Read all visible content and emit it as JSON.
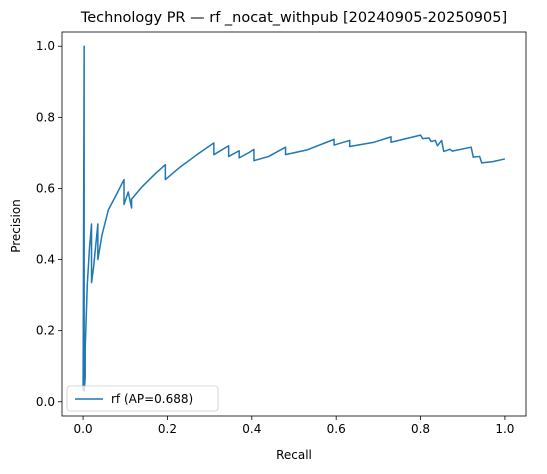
{
  "chart_data": {
    "type": "line",
    "title": "Technology PR — rf _nocat_withpub [20240905-20250905]",
    "xlabel": "Recall",
    "ylabel": "Precision",
    "xlim": [
      -0.05,
      1.05
    ],
    "ylim": [
      -0.04,
      1.04
    ],
    "xticks": [
      0.0,
      0.2,
      0.4,
      0.6,
      0.8,
      1.0
    ],
    "xtick_labels": [
      "0.0",
      "0.2",
      "0.4",
      "0.6",
      "0.8",
      "1.0"
    ],
    "yticks": [
      0.0,
      0.2,
      0.4,
      0.6,
      0.8,
      1.0
    ],
    "ytick_labels": [
      "0.0",
      "0.2",
      "0.4",
      "0.6",
      "0.8",
      "1.0"
    ],
    "grid": false,
    "legend_position": "lower-left",
    "series": [
      {
        "name": "rf (AP=0.688)",
        "color": "#1f77b4",
        "x": [
          0.0,
          0.0025,
          0.0025,
          0.005,
          0.005,
          0.01,
          0.015,
          0.02,
          0.02,
          0.025,
          0.035,
          0.035,
          0.045,
          0.06,
          0.08,
          0.097,
          0.097,
          0.107,
          0.115,
          0.115,
          0.14,
          0.17,
          0.195,
          0.195,
          0.23,
          0.27,
          0.31,
          0.31,
          0.345,
          0.345,
          0.37,
          0.37,
          0.392,
          0.405,
          0.405,
          0.44,
          0.48,
          0.48,
          0.53,
          0.595,
          0.595,
          0.632,
          0.632,
          0.69,
          0.73,
          0.73,
          0.8,
          0.805,
          0.82,
          0.825,
          0.835,
          0.84,
          0.85,
          0.855,
          0.87,
          0.875,
          0.92,
          0.925,
          0.94,
          0.945,
          0.97,
          1.0
        ],
        "y": [
          0.03,
          1.0,
          0.03,
          0.07,
          0.15,
          0.33,
          0.43,
          0.5,
          0.335,
          0.38,
          0.5,
          0.4,
          0.47,
          0.54,
          0.585,
          0.625,
          0.555,
          0.59,
          0.545,
          0.57,
          0.605,
          0.64,
          0.667,
          0.625,
          0.66,
          0.695,
          0.728,
          0.695,
          0.72,
          0.69,
          0.706,
          0.686,
          0.7,
          0.71,
          0.678,
          0.69,
          0.716,
          0.695,
          0.708,
          0.738,
          0.722,
          0.735,
          0.718,
          0.73,
          0.745,
          0.73,
          0.75,
          0.74,
          0.742,
          0.732,
          0.735,
          0.72,
          0.735,
          0.704,
          0.71,
          0.705,
          0.716,
          0.688,
          0.69,
          0.672,
          0.675,
          0.683
        ]
      }
    ]
  }
}
